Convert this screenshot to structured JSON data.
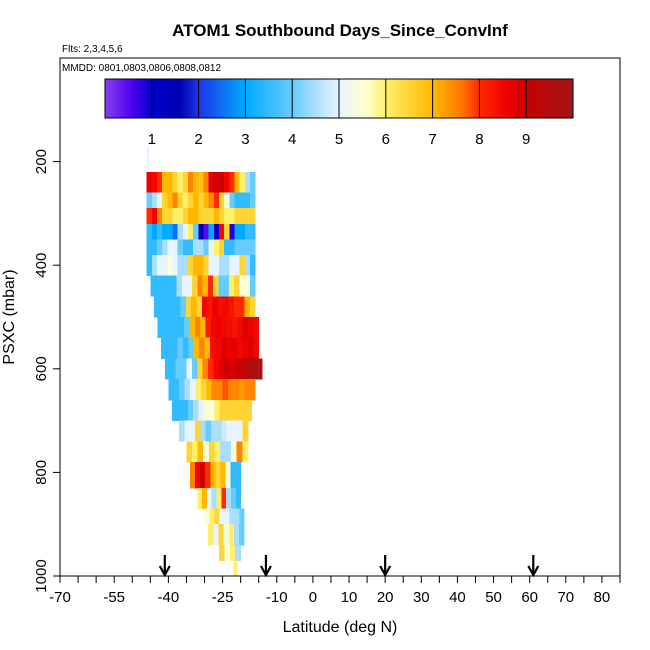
{
  "chart_data": {
    "type": "heatmap",
    "title": "ATOM1 Southbound Days_Since_ConvInf",
    "subtitle_flights": "Flts: 2,3,4,5,6",
    "subtitle_dates": "MMDD: 0801,0803,0806,0808,0812",
    "xlabel": "Latitude (deg N)",
    "ylabel": "PSXC (mbar)",
    "xlim": [
      -70,
      85
    ],
    "ylim": [
      1000,
      0
    ],
    "x_ticks_labeled": [
      -70,
      -55,
      -40,
      -25,
      -10,
      0,
      10,
      20,
      30,
      40,
      50,
      60,
      70,
      80
    ],
    "x_tick_labels": [
      "-70",
      "-55",
      "-40",
      "-25",
      "-10",
      "0",
      "10",
      "20",
      "30",
      "40",
      "50",
      "60",
      "70",
      "80"
    ],
    "x_minor_ticks": [
      -65,
      -60,
      -50,
      -45,
      -35,
      -30,
      -20,
      -15,
      -5,
      5,
      15,
      25,
      35,
      45,
      55,
      65,
      75,
      85
    ],
    "y_ticks": [
      200,
      400,
      600,
      800,
      1000
    ],
    "y_tick_labels": [
      "200",
      "400",
      "600",
      "800",
      "1000"
    ],
    "colorbar": {
      "range": [
        0,
        10
      ],
      "tick_values": [
        1,
        2,
        3,
        4,
        5,
        6,
        7,
        8,
        9
      ],
      "tick_labels": [
        "1",
        "2",
        "3",
        "4",
        "5",
        "6",
        "7",
        "8",
        "9"
      ],
      "stops": [
        {
          "v": 0.0,
          "color": "#8a3ff0"
        },
        {
          "v": 0.6,
          "color": "#4a00ee"
        },
        {
          "v": 1.0,
          "color": "#0000cc"
        },
        {
          "v": 1.6,
          "color": "#0000b0"
        },
        {
          "v": 2.0,
          "color": "#1b35e8"
        },
        {
          "v": 3.0,
          "color": "#00aaff"
        },
        {
          "v": 4.0,
          "color": "#66ccff"
        },
        {
          "v": 4.6,
          "color": "#b8e2ff"
        },
        {
          "v": 5.0,
          "color": "#e8f4ff"
        },
        {
          "v": 5.6,
          "color": "#ffffcc"
        },
        {
          "v": 6.0,
          "color": "#fff06a"
        },
        {
          "v": 7.0,
          "color": "#ffb800"
        },
        {
          "v": 7.6,
          "color": "#ff7a00"
        },
        {
          "v": 8.0,
          "color": "#ff2a00"
        },
        {
          "v": 8.6,
          "color": "#ee0000"
        },
        {
          "v": 9.0,
          "color": "#c80000"
        },
        {
          "v": 10.0,
          "color": "#a01616"
        }
      ]
    },
    "flight_arrows_lat": [
      -41,
      -13,
      20,
      61
    ],
    "lat_columns": [
      -46,
      -44.5,
      -43,
      -41.5,
      -40,
      -38.5,
      -37,
      -35.5,
      -34,
      -32.5,
      -31,
      -29.5,
      -28,
      -26.5,
      -25,
      -23.5,
      -22,
      -20.5,
      -19,
      -17.5,
      -16
    ],
    "pressure_bins": [
      {
        "p_top": 170,
        "p_bot": 220,
        "x_min": -46,
        "x_max": -45.5,
        "values": [
          5
        ]
      },
      {
        "p_top": 220,
        "p_bot": 260,
        "x_min": -46,
        "x_max": -16,
        "values": [
          8.6,
          8.5,
          8,
          7,
          7,
          6.5,
          6,
          6.5,
          7.5,
          7,
          6.8,
          7.5,
          8.7,
          8.9,
          9,
          8.5,
          8,
          7,
          6,
          4.5,
          4
        ]
      },
      {
        "p_top": 260,
        "p_bot": 290,
        "x_min": -46,
        "x_max": -16,
        "values": [
          4,
          4.5,
          5,
          6.5,
          7,
          7.5,
          6.5,
          6,
          6.5,
          7,
          6.5,
          7,
          7.5,
          8,
          6.5,
          5.5,
          4,
          3.5,
          3.5,
          3.5,
          4
        ]
      },
      {
        "p_top": 290,
        "p_bot": 320,
        "x_min": -46,
        "x_max": -16,
        "values": [
          8,
          8.5,
          7.5,
          6.5,
          6.5,
          6,
          6,
          6.5,
          7,
          7,
          6.5,
          6.5,
          6.5,
          7,
          6.5,
          6,
          6,
          6.5,
          6.5,
          6.5,
          6.5
        ]
      },
      {
        "p_top": 320,
        "p_bot": 350,
        "x_min": -46,
        "x_max": -16,
        "values": [
          3.5,
          3,
          3.5,
          3,
          3,
          2.5,
          4.5,
          5,
          6,
          4,
          1.5,
          0.5,
          3,
          1,
          8.5,
          6.5,
          0.8,
          3,
          3,
          3.5,
          3.5
        ]
      },
      {
        "p_top": 350,
        "p_bot": 380,
        "x_min": -46,
        "x_max": -16,
        "values": [
          3.5,
          3.5,
          4,
          4.5,
          5,
          5,
          4,
          3.5,
          3.5,
          4.5,
          4.5,
          4,
          5,
          6,
          6.5,
          3.5,
          3.5,
          4,
          4,
          4,
          4
        ]
      },
      {
        "p_top": 380,
        "p_bot": 420,
        "x_min": -46,
        "x_max": -16,
        "values": [
          3.5,
          4.5,
          5,
          5,
          5.5,
          5,
          4.5,
          4.5,
          6.5,
          7,
          7,
          6.5,
          5,
          5,
          4.5,
          4.5,
          5,
          5,
          6.5,
          4.5,
          3.5
        ]
      },
      {
        "p_top": 420,
        "p_bot": 460,
        "x_min": -45,
        "x_max": -16,
        "values": [
          3.5,
          3.5,
          3.5,
          3.5,
          3.5,
          4.5,
          5,
          5,
          6.5,
          7.5,
          7,
          8,
          6.5,
          4,
          4,
          6,
          6.5,
          5.5,
          5.5,
          4
        ]
      },
      {
        "p_top": 460,
        "p_bot": 500,
        "x_min": -44,
        "x_max": -16,
        "values": [
          3.5,
          3.5,
          3.5,
          3.5,
          3.5,
          4,
          6.5,
          7,
          6.5,
          8.5,
          8.3,
          8.6,
          8.4,
          8.5,
          8.3,
          8,
          8,
          7,
          6.5
        ]
      },
      {
        "p_top": 500,
        "p_bot": 540,
        "x_min": -43,
        "x_max": -15,
        "values": [
          3.5,
          3.5,
          3.5,
          3.5,
          3.5,
          4,
          7,
          7.5,
          7,
          8.2,
          8.5,
          8.6,
          8.5,
          8.4,
          8.3,
          8.5,
          8.8,
          8.6,
          8.5
        ]
      },
      {
        "p_top": 540,
        "p_bot": 580,
        "x_min": -42,
        "x_max": -15,
        "values": [
          3.5,
          3.5,
          3.5,
          4,
          3.5,
          4,
          7,
          7.5,
          7,
          8.4,
          8.5,
          8.8,
          8.6,
          8.7,
          8.5,
          8.6,
          8.8,
          8.5
        ]
      },
      {
        "p_top": 580,
        "p_bot": 620,
        "x_min": -41,
        "x_max": -14,
        "values": [
          3.5,
          3.5,
          4,
          4,
          5,
          4,
          6.5,
          7.5,
          8,
          8.5,
          8.7,
          9,
          8.8,
          9,
          9.2,
          9.5,
          9.7,
          9.8
        ]
      },
      {
        "p_top": 620,
        "p_bot": 660,
        "x_min": -40,
        "x_max": -16,
        "values": [
          3.5,
          3.5,
          4,
          4.5,
          5,
          6,
          6.5,
          7,
          7.5,
          7.5,
          7.8,
          7.5,
          7.5,
          7.3,
          7.5,
          7.5
        ]
      },
      {
        "p_top": 660,
        "p_bot": 700,
        "x_min": -39,
        "x_max": -17,
        "values": [
          3.5,
          3.5,
          3.5,
          4,
          4.5,
          5,
          5.5,
          5.5,
          6,
          6.5,
          6.5,
          6.5,
          6.5,
          6.5,
          6.5
        ]
      },
      {
        "p_top": 700,
        "p_bot": 740,
        "x_min": -37,
        "x_max": -18,
        "values": [
          4.5,
          5,
          5,
          6.5,
          4.5,
          4,
          4.5,
          4.5,
          4.8,
          5,
          5,
          5,
          6.5
        ]
      },
      {
        "p_top": 740,
        "p_bot": 780,
        "x_min": -35,
        "x_max": -18,
        "values": [
          6.5,
          6,
          7,
          5.5,
          6.5,
          6,
          4.5,
          4.5,
          5.5,
          7.5,
          6
        ]
      },
      {
        "p_top": 780,
        "p_bot": 830,
        "x_min": -34,
        "x_max": -20,
        "values": [
          7.5,
          8.5,
          9,
          8,
          7,
          6.5,
          7,
          5.5,
          3.5,
          3.5
        ]
      },
      {
        "p_top": 830,
        "p_bot": 870,
        "x_min": -32,
        "x_max": -20,
        "values": [
          6,
          7,
          5,
          4.5,
          6,
          8,
          4.5,
          4,
          3.5
        ]
      },
      {
        "p_top": 870,
        "p_bot": 900,
        "x_min": -30,
        "x_max": -19,
        "values": [
          5.5,
          6,
          6.5,
          5,
          5,
          4.5,
          4.5,
          4
        ]
      },
      {
        "p_top": 900,
        "p_bot": 940,
        "x_min": -29,
        "x_max": -19,
        "values": [
          6,
          5,
          6.5,
          5.5,
          6,
          4.5,
          4
        ]
      },
      {
        "p_top": 940,
        "p_bot": 970,
        "x_min": -26,
        "x_max": -20,
        "values": [
          6.5,
          5.5,
          6,
          4.5
        ]
      },
      {
        "p_top": 970,
        "p_bot": 1000,
        "x_min": -22,
        "x_max": -21,
        "values": [
          6
        ]
      }
    ]
  }
}
